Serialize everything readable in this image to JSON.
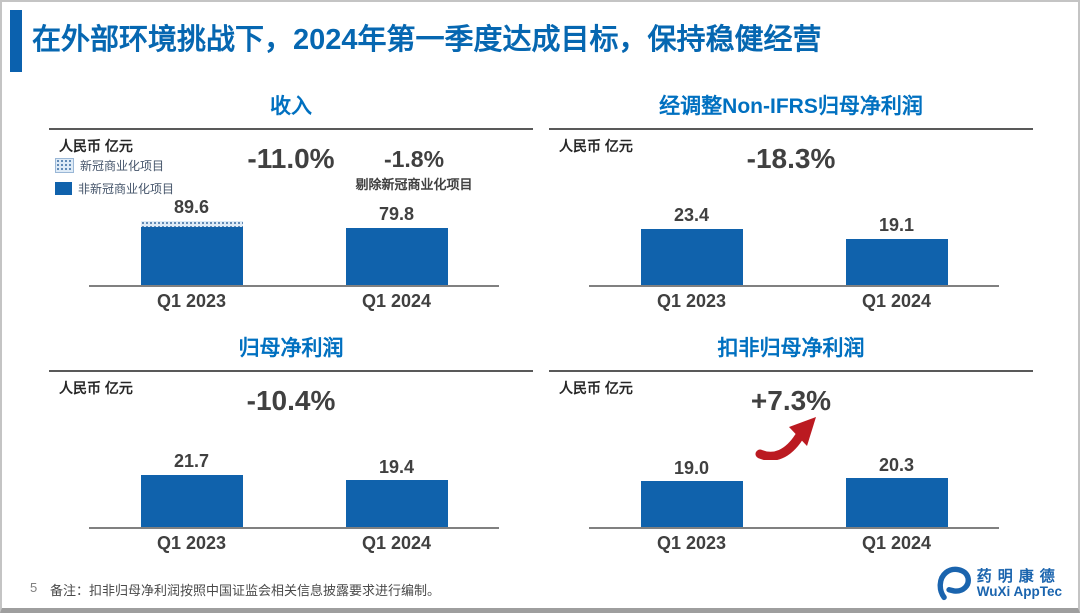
{
  "header": {
    "title": "在外部环境挑战下，2024年第一季度达成目标，保持稳健经营"
  },
  "colors": {
    "accent_blue": "#0B61AE",
    "title_blue": "#0667B1",
    "chart_title_blue": "#0070C0",
    "bar_blue": "#1062AC",
    "covid_pattern_bg": "#DEEBF7",
    "covid_pattern_dot": "#3E6FA3",
    "dark_text": "#404040",
    "axis_gray": "#808080",
    "arrow_red": "#BB1A21",
    "logo_blue": "#1A64AE"
  },
  "chart_data": [
    {
      "id": "revenue",
      "type": "bar",
      "title": "收入",
      "unit_label": "人民币 亿元",
      "categories": [
        "Q1 2023",
        "Q1 2024"
      ],
      "values": [
        89.6,
        79.8
      ],
      "value_labels": [
        "89.6",
        "79.8"
      ],
      "series": [
        {
          "name": "新冠商业化项目",
          "style": "dotted",
          "values": [
            8.3,
            0
          ]
        },
        {
          "name": "非新冠商业化项目",
          "style": "solid",
          "values": [
            81.3,
            79.8
          ]
        }
      ],
      "changes": [
        {
          "label": "-11.0%",
          "caption": ""
        },
        {
          "label": "-1.8%",
          "caption": "剔除新冠商业化项目"
        }
      ],
      "ylim": [
        0,
        100
      ],
      "grid": false,
      "legend_position": "top-left"
    },
    {
      "id": "adjusted-non-ifrs-net-profit",
      "type": "bar",
      "title": "经调整Non-IFRS归母净利润",
      "unit_label": "人民币 亿元",
      "categories": [
        "Q1 2023",
        "Q1 2024"
      ],
      "values": [
        23.4,
        19.1
      ],
      "value_labels": [
        "23.4",
        "19.1"
      ],
      "changes": [
        {
          "label": "-18.3%",
          "caption": ""
        }
      ],
      "ylim": [
        0,
        30
      ],
      "grid": false
    },
    {
      "id": "net-profit-attributable",
      "type": "bar",
      "title": "归母净利润",
      "unit_label": "人民币 亿元",
      "categories": [
        "Q1 2023",
        "Q1 2024"
      ],
      "values": [
        21.7,
        19.4
      ],
      "value_labels": [
        "21.7",
        "19.4"
      ],
      "changes": [
        {
          "label": "-10.4%",
          "caption": ""
        }
      ],
      "ylim": [
        0,
        30
      ],
      "grid": false
    },
    {
      "id": "deducted-net-profit",
      "type": "bar",
      "title": "扣非归母净利润",
      "unit_label": "人民币 亿元",
      "categories": [
        "Q1 2023",
        "Q1 2024"
      ],
      "values": [
        19.0,
        20.3
      ],
      "value_labels": [
        "19.0",
        "20.3"
      ],
      "changes": [
        {
          "label": "+7.3%",
          "caption": ""
        }
      ],
      "has_up_arrow": true,
      "ylim": [
        0,
        30
      ],
      "grid": false
    }
  ],
  "footer": {
    "page_number": "5",
    "note": "备注：扣非归母净利润按照中国证监会相关信息披露要求进行编制。",
    "logo": {
      "name_cn": "药明康德",
      "name_en": "WuXi AppTec"
    }
  }
}
